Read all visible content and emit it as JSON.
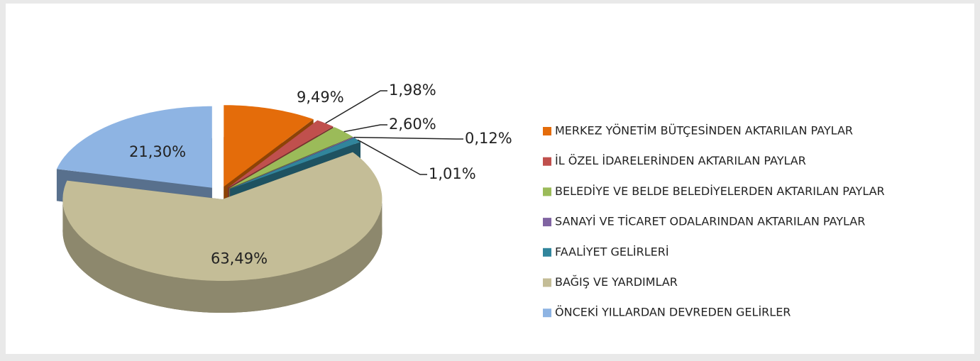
{
  "chart_data": {
    "type": "pie3d",
    "categories": [
      "MERKEZ YÖNETİM BÜTÇESİNDEN AKTARILAN PAYLAR",
      "İL ÖZEL İDARELERİNDEN AKTARILAN PAYLAR",
      "BELEDİYE VE BELDE BELEDİYELERDEN AKTARILAN PAYLAR",
      "SANAYİ VE TİCARET ODALARINDAN AKTARILAN PAYLAR",
      "FAALİYET GELİRLERİ",
      "BAĞIŞ VE YARDIMLAR",
      "ÖNCEKİ YILLARDAN DEVREDEN GELİRLER"
    ],
    "values": [
      9.49,
      1.98,
      2.6,
      0.12,
      1.01,
      63.49,
      21.3
    ],
    "value_labels": [
      "9,49%",
      "1,98%",
      "2,60%",
      "0,12%",
      "1,01%",
      "63,49%",
      "21,30%"
    ],
    "colors": [
      "#e46c0a",
      "#c0504d",
      "#9bbb59",
      "#8064a2",
      "#31859c",
      "#c4bd97",
      "#8eb4e3"
    ],
    "legend": "right"
  }
}
